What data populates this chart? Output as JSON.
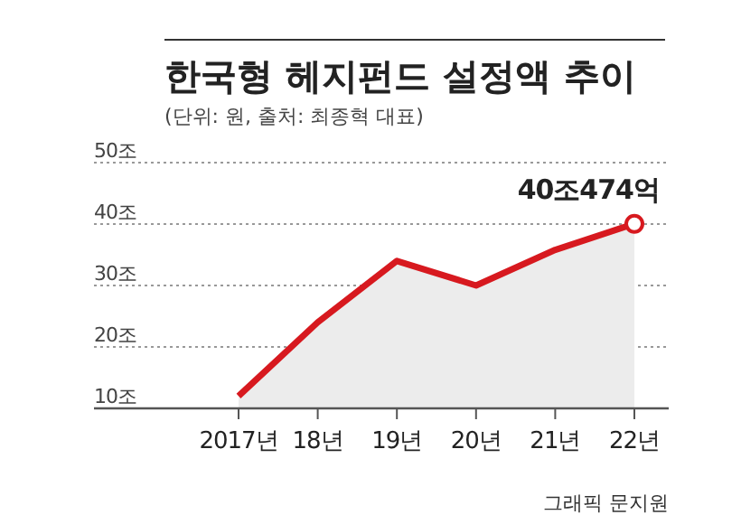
{
  "chart_data": {
    "type": "area",
    "title": "한국형 헤지펀드 설정액 추이",
    "subtitle": "(단위: 원, 출처: 최종혁 대표)",
    "categories": [
      "2017년",
      "18년",
      "19년",
      "20년",
      "21년",
      "22년"
    ],
    "series": [
      {
        "color": "#d7191f",
        "values": [
          12,
          24,
          34,
          30,
          35.8,
          40.0474
        ]
      }
    ],
    "ylim": [
      10,
      50
    ],
    "yticks": [
      {
        "value": 10,
        "label": "10조"
      },
      {
        "value": 20,
        "label": "20조"
      },
      {
        "value": 30,
        "label": "30조"
      },
      {
        "value": 40,
        "label": "40조"
      },
      {
        "value": 50,
        "label": "50조"
      }
    ],
    "grid": "y",
    "line_style": "solid",
    "marker": "none",
    "annotations": [
      {
        "text": "40조474억",
        "x": "22년",
        "y": 40.0474
      },
      "그래픽 문지원"
    ]
  }
}
